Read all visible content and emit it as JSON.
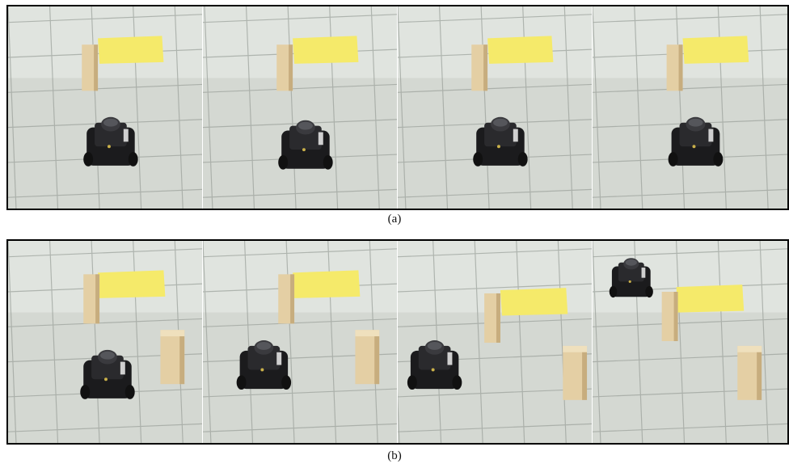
{
  "figure": {
    "caption_a": "(a)",
    "caption_b": "(b)"
  },
  "palette": {
    "floor": "#d4d8d2",
    "floor_light": "#e6e9e4",
    "grout": "#9aa09a",
    "paper": "#f5ea6a",
    "wood": "#e4cfa4",
    "wood_shade": "#c7ad7e",
    "robot": "#1b1b1d",
    "robot_top": "#3a3a3e"
  }
}
